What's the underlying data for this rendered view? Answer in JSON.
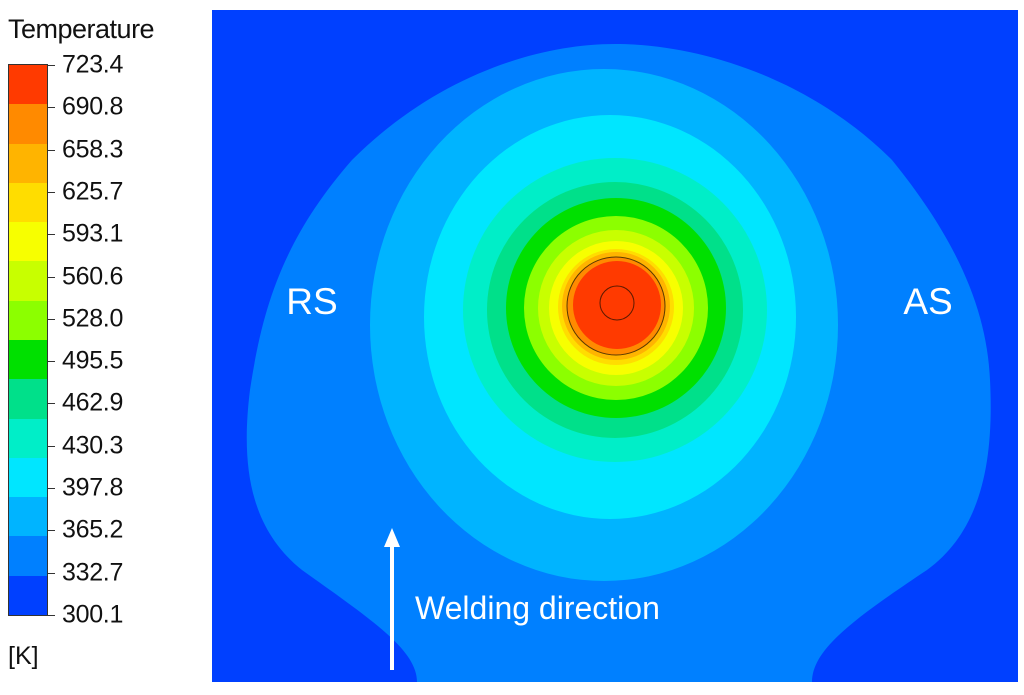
{
  "legend": {
    "title": "Temperature",
    "unit": "[K]",
    "ticks": [
      "723.4",
      "690.8",
      "658.3",
      "625.7",
      "593.1",
      "560.6",
      "528.0",
      "495.5",
      "462.9",
      "430.3",
      "397.8",
      "365.2",
      "332.7",
      "300.1"
    ],
    "colors": [
      "#ff3a00",
      "#ff8a00",
      "#ffb400",
      "#ffdd00",
      "#f7ff00",
      "#c8ff00",
      "#8cff00",
      "#00e000",
      "#00e08a",
      "#00eec8",
      "#00e6ff",
      "#00b4ff",
      "#0080ff",
      "#0040ff"
    ]
  },
  "diagram": {
    "label_left": "RS",
    "label_right": "AS",
    "arrow_label": "Welding direction"
  }
}
